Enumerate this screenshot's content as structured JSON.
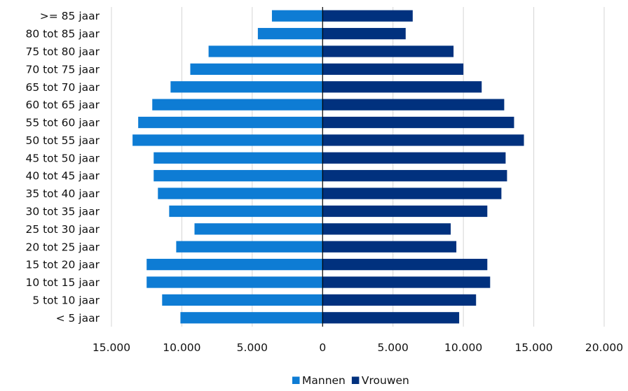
{
  "chart_data": {
    "type": "bar",
    "orientation": "horizontal",
    "chart_style": "population-pyramid",
    "categories": [
      ">= 85 jaar",
      "80 tot 85 jaar",
      "75 tot 80 jaar",
      "70 tot 75 jaar",
      "65 tot 70 jaar",
      "60 tot 65 jaar",
      "55 tot 60 jaar",
      "50 tot 55 jaar",
      "45 tot 50 jaar",
      "40 tot 45 jaar",
      "35 tot 40 jaar",
      "30 tot 35 jaar",
      "25 tot 30 jaar",
      "20 tot 25 jaar",
      "15 tot 20 jaar",
      "10 tot 15 jaar",
      "5 tot 10 jaar",
      "< 5 jaar"
    ],
    "series": [
      {
        "name": "Mannen",
        "color": "#0E7CD4",
        "side": "left",
        "values": [
          3600,
          4600,
          8100,
          9400,
          10800,
          12100,
          13100,
          13500,
          12000,
          12000,
          11700,
          10900,
          9100,
          10400,
          12500,
          12500,
          11400,
          10100
        ]
      },
      {
        "name": "Vrouwen",
        "color": "#01317E",
        "side": "right",
        "values": [
          6400,
          5900,
          9300,
          10000,
          11300,
          12900,
          13600,
          14300,
          13000,
          13100,
          12700,
          11700,
          9100,
          9500,
          11700,
          11900,
          10900,
          9700
        ]
      }
    ],
    "x_ticks": [
      "15.000",
      "10.000",
      "5.000",
      "0",
      "5.000",
      "10.000",
      "15.000",
      "20.000"
    ],
    "xlim": [
      -15000,
      20000
    ],
    "grid": "vertical",
    "legend": "bottom-center"
  }
}
